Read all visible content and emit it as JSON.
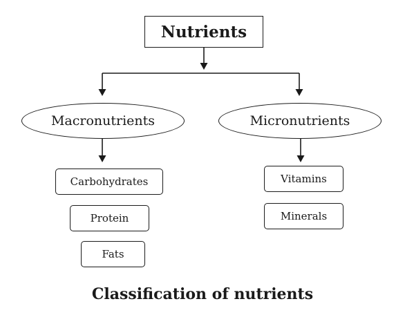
{
  "root": {
    "label": "Nutrients"
  },
  "categories": [
    {
      "label": "Macronutrients",
      "items": [
        "Carbohydrates",
        "Protein",
        "Fats"
      ]
    },
    {
      "label": "Micronutrients",
      "items": [
        "Vitamins",
        "Minerals"
      ]
    }
  ],
  "caption": "Classification of nutrients",
  "colors": {
    "stroke": "#1a1a1a",
    "background": "#ffffff"
  }
}
